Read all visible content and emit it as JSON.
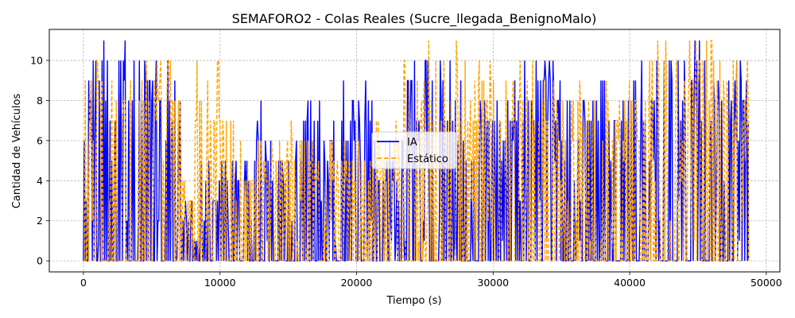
{
  "chart_data": {
    "type": "line",
    "title": "SEMAFORO2 - Colas Reales (Sucre_llegada_BenignoMalo)",
    "xlabel": "Tiempo (s)",
    "ylabel": "Cantidad de Vehículos",
    "xlim": [
      -2500,
      51000
    ],
    "ylim": [
      -0.55,
      11.55
    ],
    "xticks": [
      0,
      10000,
      20000,
      30000,
      40000,
      50000
    ],
    "xtick_labels": [
      "0",
      "10000",
      "20000",
      "30000",
      "40000",
      "50000"
    ],
    "yticks": [
      0,
      2,
      4,
      6,
      8,
      10
    ],
    "ytick_labels": [
      "0",
      "2",
      "4",
      "6",
      "8",
      "10"
    ],
    "grid": true,
    "legend_position": "center",
    "series": [
      {
        "name": "IA",
        "color": "#0000ff",
        "style": "solid",
        "segments": [
          {
            "x0": 0,
            "x1": 700,
            "max": 9
          },
          {
            "x0": 700,
            "x1": 4800,
            "max": 11
          },
          {
            "x0": 4800,
            "x1": 7200,
            "max": 10
          },
          {
            "x0": 7200,
            "x1": 8000,
            "max": 3
          },
          {
            "x0": 8000,
            "x1": 10800,
            "max": 5
          },
          {
            "x0": 10800,
            "x1": 12600,
            "max": 5
          },
          {
            "x0": 12600,
            "x1": 13200,
            "max": 9
          },
          {
            "x0": 13200,
            "x1": 16000,
            "max": 6
          },
          {
            "x0": 16000,
            "x1": 18600,
            "max": 8
          },
          {
            "x0": 18600,
            "x1": 21200,
            "max": 9
          },
          {
            "x0": 21200,
            "x1": 23400,
            "max": 6
          },
          {
            "x0": 23400,
            "x1": 27800,
            "max": 10
          },
          {
            "x0": 27800,
            "x1": 31000,
            "max": 8
          },
          {
            "x0": 31000,
            "x1": 34500,
            "max": 10
          },
          {
            "x0": 34500,
            "x1": 37000,
            "max": 9
          },
          {
            "x0": 37000,
            "x1": 41000,
            "max": 10
          },
          {
            "x0": 41000,
            "x1": 44000,
            "max": 10
          },
          {
            "x0": 44000,
            "x1": 47500,
            "max": 11
          },
          {
            "x0": 47500,
            "x1": 48700,
            "max": 10
          }
        ]
      },
      {
        "name": "Estático",
        "color": "#ffa500",
        "style": "dashed",
        "segments": [
          {
            "x0": 0,
            "x1": 700,
            "max": 10
          },
          {
            "x0": 700,
            "x1": 5500,
            "max": 10
          },
          {
            "x0": 5500,
            "x1": 7200,
            "max": 11
          },
          {
            "x0": 7200,
            "x1": 8000,
            "max": 4
          },
          {
            "x0": 8000,
            "x1": 11000,
            "max": 10
          },
          {
            "x0": 11000,
            "x1": 13400,
            "max": 6
          },
          {
            "x0": 13400,
            "x1": 16000,
            "max": 7
          },
          {
            "x0": 16000,
            "x1": 18600,
            "max": 6
          },
          {
            "x0": 18600,
            "x1": 21200,
            "max": 6
          },
          {
            "x0": 21200,
            "x1": 23400,
            "max": 7
          },
          {
            "x0": 23400,
            "x1": 27800,
            "max": 11
          },
          {
            "x0": 27800,
            "x1": 31000,
            "max": 10
          },
          {
            "x0": 31000,
            "x1": 34500,
            "max": 10
          },
          {
            "x0": 34500,
            "x1": 37000,
            "max": 9
          },
          {
            "x0": 37000,
            "x1": 41000,
            "max": 9
          },
          {
            "x0": 41000,
            "x1": 44000,
            "max": 11
          },
          {
            "x0": 44000,
            "x1": 47500,
            "max": 11
          },
          {
            "x0": 47500,
            "x1": 48700,
            "max": 10
          }
        ]
      }
    ]
  }
}
